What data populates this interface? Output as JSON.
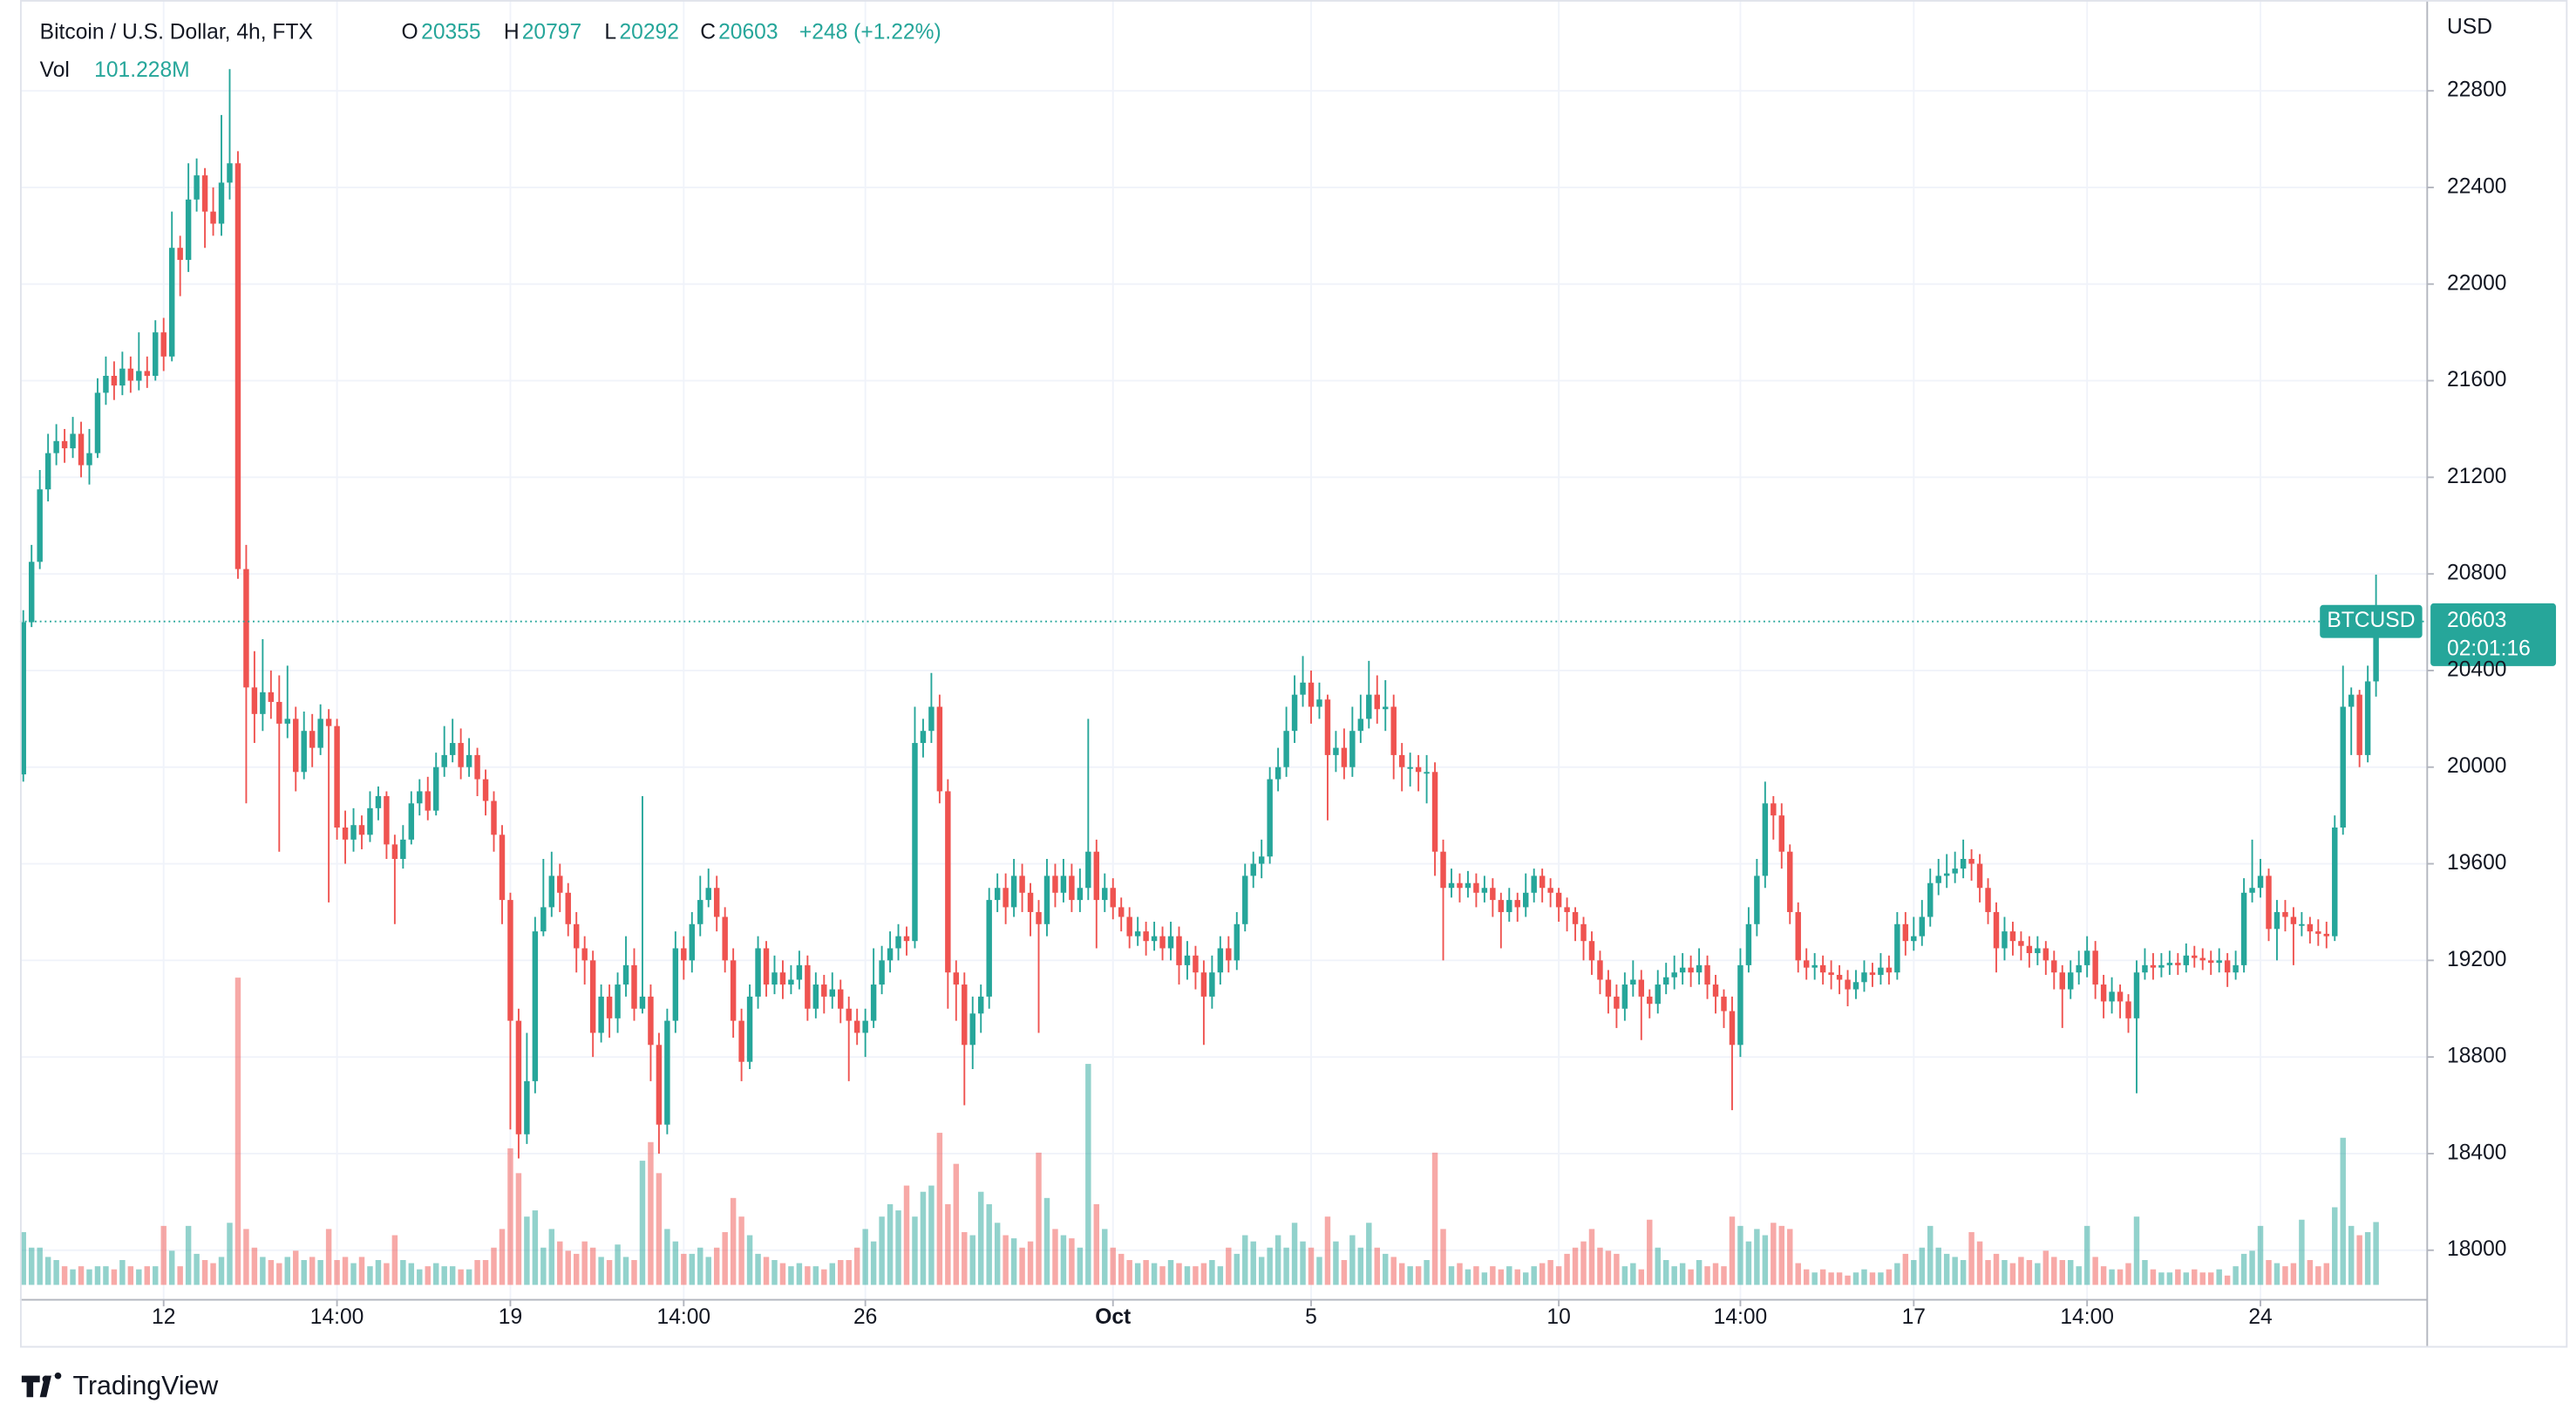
{
  "chart_data": {
    "type": "candlestick",
    "title": "Bitcoin / U.S. Dollar, 4h, FTX",
    "ohlc_labels": [
      "O",
      "H",
      "L",
      "C"
    ],
    "change_label": "+248 (+1.22%)",
    "volume_name": "Vol",
    "volume_last_label": "101.228M",
    "currency": "USD",
    "symbol": "BTCUSD",
    "countdown": "02:01:16",
    "up_color": "#26a69a",
    "down_color": "#ef5350",
    "grid": true,
    "xlim": [
      -0.4,
      291.2
    ],
    "ylim": [
      17795,
      23176
    ],
    "volume_ylim": [
      0,
      2070
    ],
    "xticks": [
      {
        "value": 17,
        "label": "12"
      },
      {
        "value": 38,
        "label": "14:00"
      },
      {
        "value": 59,
        "label": "19"
      },
      {
        "value": 80,
        "label": "14:00"
      },
      {
        "value": 102,
        "label": "26"
      },
      {
        "value": 132,
        "label": "Oct"
      },
      {
        "value": 156,
        "label": "5"
      },
      {
        "value": 186,
        "label": "10"
      },
      {
        "value": 208,
        "label": "14:00"
      },
      {
        "value": 229,
        "label": "17"
      },
      {
        "value": 250,
        "label": "14:00"
      },
      {
        "value": 271,
        "label": "24"
      }
    ],
    "yticks": [
      18000,
      18400,
      18800,
      19200,
      19600,
      20000,
      20400,
      20800,
      21200,
      21600,
      22000,
      22400,
      22800
    ],
    "open": [
      19970,
      20600,
      20850,
      21150,
      21300,
      21350,
      21320,
      21380,
      21250,
      21300,
      21550,
      21620,
      21580,
      21650,
      21600,
      21640,
      21620,
      21800,
      21700,
      22150,
      22100,
      22350,
      22450,
      22300,
      22250,
      22420,
      22500,
      20820,
      20330,
      20220,
      20310,
      20270,
      20180,
      20200,
      19980,
      20150,
      20080,
      20200,
      20170,
      19750,
      19700,
      19760,
      19720,
      19830,
      19880,
      19680,
      19620,
      19700,
      19850,
      19900,
      19820,
      20000,
      20050,
      20100,
      20000,
      20050,
      19950,
      19860,
      19720,
      19450,
      18950,
      18480,
      18700,
      19320,
      19420,
      19550,
      19480,
      19350,
      19250,
      19200,
      18900,
      19050,
      18960,
      19100,
      19180,
      19000,
      19050,
      18850,
      18520,
      18950,
      19250,
      19200,
      19350,
      19450,
      19500,
      19380,
      19200,
      18950,
      18780,
      19050,
      19250,
      19100,
      19150,
      19100,
      19120,
      19180,
      19000,
      19100,
      19050,
      19080,
      19000,
      18950,
      18900,
      18950,
      19100,
      19200,
      19250,
      19300,
      19280,
      20100,
      20150,
      20250,
      19900,
      19150,
      19100,
      18850,
      18980,
      19050,
      19450,
      19500,
      19420,
      19550,
      19480,
      19400,
      19350,
      19550,
      19480,
      19550,
      19450,
      19500,
      19650,
      19450,
      19500,
      19420,
      19380,
      19300,
      19320,
      19280,
      19300,
      19250,
      19300,
      19180,
      19220,
      19150,
      19050,
      19150,
      19250,
      19200,
      19350,
      19550,
      19600,
      19630,
      19950,
      20000,
      20150,
      20300,
      20350,
      20250,
      20280,
      20050,
      20080,
      20000,
      20150,
      20200,
      20300,
      20240,
      20250,
      20050,
      20000,
      20000,
      19980,
      19980,
      19650,
      19500,
      19520,
      19500,
      19520,
      19480,
      19500,
      19450,
      19400,
      19450,
      19420,
      19480,
      19550,
      19500,
      19480,
      19420,
      19400,
      19350,
      19280,
      19200,
      19120,
      19050,
      19000,
      19100,
      19120,
      19050,
      19020,
      19100,
      19130,
      19150,
      19170,
      19150,
      19180,
      19100,
      19050,
      18990,
      18850,
      19180,
      19350,
      19550,
      19850,
      19800,
      19650,
      19400,
      19200,
      19170,
      19180,
      19150,
      19140,
      19120,
      19080,
      19110,
      19150,
      19140,
      19170,
      19150,
      19350,
      19280,
      19300,
      19380,
      19520,
      19550,
      19560,
      19580,
      19620,
      19600,
      19500,
      19400,
      19250,
      19320,
      19280,
      19260,
      19230,
      19250,
      19200,
      19150,
      19080,
      19150,
      19180,
      19240,
      19100,
      19030,
      19070,
      19030,
      18960,
      19150,
      19180,
      19170,
      19180,
      19190,
      19180,
      19220,
      19210,
      19200,
      19190,
      19200,
      19150,
      19180,
      19480,
      19500,
      19550,
      19330,
      19400,
      19380,
      19350,
      19350,
      19320,
      19310,
      19300,
      19750,
      20250,
      20300,
      20050,
      20355
    ],
    "high": [
      20650,
      20920,
      21230,
      21380,
      21420,
      21400,
      21450,
      21430,
      21400,
      21610,
      21700,
      21680,
      21720,
      21700,
      21800,
      21700,
      21850,
      21860,
      22300,
      22200,
      22500,
      22520,
      22480,
      22400,
      22700,
      22890,
      22550,
      20920,
      20480,
      20530,
      20400,
      20380,
      20420,
      20250,
      20230,
      20220,
      20260,
      20240,
      20200,
      19820,
      19830,
      19800,
      19900,
      19920,
      19900,
      19720,
      19760,
      19900,
      19950,
      19960,
      20060,
      20170,
      20200,
      20160,
      20120,
      20080,
      19990,
      19900,
      19760,
      19480,
      19000,
      18900,
      19380,
      19620,
      19650,
      19600,
      19520,
      19400,
      19300,
      19240,
      19100,
      19100,
      19150,
      19300,
      19250,
      19880,
      19100,
      18900,
      19000,
      19320,
      19300,
      19400,
      19550,
      19580,
      19550,
      19420,
      19250,
      19000,
      19100,
      19300,
      19280,
      19220,
      19200,
      19180,
      19240,
      19220,
      19150,
      19140,
      19150,
      19120,
      19050,
      19000,
      19000,
      19250,
      19260,
      19320,
      19350,
      19340,
      20250,
      20200,
      20390,
      20300,
      19950,
      19200,
      19150,
      19050,
      19100,
      19500,
      19560,
      19560,
      19620,
      19600,
      19520,
      19450,
      19620,
      19600,
      19620,
      19600,
      19580,
      20200,
      19700,
      19560,
      19540,
      19460,
      19420,
      19380,
      19360,
      19360,
      19340,
      19360,
      19340,
      19280,
      19260,
      19200,
      19220,
      19300,
      19300,
      19400,
      19600,
      19650,
      19700,
      20000,
      20080,
      20250,
      20380,
      20460,
      20400,
      20350,
      20300,
      20150,
      20160,
      20250,
      20300,
      20440,
      20380,
      20360,
      20300,
      20100,
      20060,
      20050,
      20050,
      20020,
      19700,
      19580,
      19560,
      19570,
      19560,
      19550,
      19540,
      19480,
      19500,
      19480,
      19560,
      19580,
      19580,
      19540,
      19500,
      19460,
      19420,
      19380,
      19320,
      19240,
      19160,
      19100,
      19150,
      19200,
      19160,
      19080,
      19160,
      19190,
      19220,
      19230,
      19220,
      19250,
      19220,
      19140,
      19080,
      19050,
      19250,
      19420,
      19620,
      19940,
      19880,
      19850,
      19680,
      19440,
      19250,
      19230,
      19220,
      19200,
      19180,
      19160,
      19160,
      19200,
      19190,
      19230,
      19220,
      19400,
      19400,
      19380,
      19450,
      19580,
      19620,
      19640,
      19650,
      19700,
      19660,
      19640,
      19540,
      19440,
      19380,
      19360,
      19320,
      19300,
      19300,
      19280,
      19240,
      19180,
      19200,
      19240,
      19300,
      19280,
      19140,
      19130,
      19100,
      19060,
      19200,
      19250,
      19230,
      19230,
      19240,
      19230,
      19270,
      19260,
      19250,
      19240,
      19250,
      19230,
      19240,
      19540,
      19700,
      19620,
      19580,
      19450,
      19450,
      19420,
      19400,
      19380,
      19370,
      19360,
      19800,
      20420,
      20330,
      20320,
      20420,
      20797
    ],
    "low": [
      19940,
      20580,
      20820,
      21100,
      21250,
      21260,
      21280,
      21200,
      21170,
      21280,
      21500,
      21520,
      21540,
      21550,
      21560,
      21570,
      21600,
      21640,
      21680,
      21950,
      22050,
      22300,
      22150,
      22200,
      22200,
      22350,
      20780,
      19850,
      20100,
      20150,
      20200,
      19650,
      20120,
      19900,
      19950,
      20000,
      20050,
      19440,
      19700,
      19600,
      19650,
      19660,
      19690,
      19780,
      19620,
      19350,
      19580,
      19680,
      19800,
      19780,
      19800,
      19960,
      20020,
      19950,
      19960,
      19880,
      19800,
      19650,
      19350,
      18500,
      18380,
      18440,
      18650,
      19300,
      19380,
      19400,
      19300,
      19150,
      19100,
      18800,
      18860,
      18880,
      18900,
      19050,
      18950,
      18980,
      18700,
      18400,
      18480,
      18900,
      19120,
      19150,
      19300,
      19420,
      19320,
      19150,
      18880,
      18700,
      18750,
      19000,
      19050,
      19060,
      19040,
      19060,
      19080,
      18950,
      18960,
      18980,
      19000,
      18940,
      18700,
      18850,
      18800,
      18920,
      19060,
      19150,
      19200,
      19220,
      19250,
      20040,
      20100,
      19850,
      19000,
      18950,
      18600,
      18750,
      18900,
      19000,
      19400,
      19350,
      19380,
      19400,
      19300,
      18900,
      19300,
      19420,
      19440,
      19400,
      19400,
      19450,
      19250,
      19400,
      19370,
      19320,
      19250,
      19260,
      19220,
      19240,
      19200,
      19200,
      19100,
      19120,
      19080,
      18850,
      19000,
      19100,
      19150,
      19160,
      19320,
      19500,
      19540,
      19600,
      19900,
      19960,
      20100,
      20250,
      20180,
      20200,
      19780,
      19980,
      19950,
      19960,
      20100,
      20160,
      20180,
      20150,
      19950,
      19900,
      19920,
      19900,
      19850,
      19550,
      19200,
      19460,
      19440,
      19460,
      19420,
      19440,
      19380,
      19250,
      19360,
      19360,
      19380,
      19440,
      19440,
      19420,
      19360,
      19320,
      19280,
      19200,
      19140,
      19060,
      18980,
      18920,
      18950,
      19050,
      18870,
      18960,
      18980,
      19060,
      19080,
      19100,
      19090,
      19100,
      19040,
      18980,
      18920,
      18580,
      18800,
      19150,
      19300,
      19500,
      19700,
      19580,
      19350,
      19150,
      19120,
      19120,
      19100,
      19080,
      19060,
      19010,
      19040,
      19070,
      19090,
      19100,
      19100,
      19120,
      19220,
      19240,
      19260,
      19340,
      19470,
      19500,
      19520,
      19540,
      19530,
      19440,
      19350,
      19150,
      19200,
      19220,
      19200,
      19170,
      19180,
      19140,
      19080,
      18920,
      19040,
      19100,
      19130,
      19040,
      18960,
      18980,
      18960,
      18900,
      18650,
      19120,
      19120,
      19130,
      19140,
      19140,
      19150,
      19170,
      19160,
      19140,
      19150,
      19090,
      19120,
      19150,
      19440,
      19460,
      19280,
      19200,
      19320,
      19180,
      19300,
      19270,
      19260,
      19250,
      19280,
      19720,
      20050,
      20000,
      20020,
      20292
    ],
    "close": [
      20600,
      20850,
      21150,
      21300,
      21350,
      21320,
      21380,
      21250,
      21300,
      21550,
      21620,
      21580,
      21650,
      21600,
      21640,
      21620,
      21800,
      21700,
      22150,
      22100,
      22350,
      22450,
      22300,
      22250,
      22420,
      22500,
      20820,
      20330,
      20220,
      20310,
      20270,
      20180,
      20200,
      19980,
      20150,
      20080,
      20200,
      20170,
      19750,
      19700,
      19760,
      19720,
      19830,
      19880,
      19680,
      19620,
      19700,
      19850,
      19900,
      19820,
      20000,
      20050,
      20100,
      20000,
      20050,
      19950,
      19860,
      19720,
      19450,
      18950,
      18480,
      18700,
      19320,
      19420,
      19550,
      19480,
      19350,
      19250,
      19200,
      18900,
      19050,
      18960,
      19100,
      19180,
      19000,
      19050,
      18850,
      18520,
      18950,
      19250,
      19200,
      19350,
      19450,
      19500,
      19380,
      19200,
      18950,
      18780,
      19050,
      19250,
      19100,
      19150,
      19100,
      19120,
      19180,
      19000,
      19100,
      19050,
      19080,
      19000,
      18950,
      18900,
      18950,
      19100,
      19200,
      19250,
      19300,
      19280,
      20100,
      20150,
      20250,
      19900,
      19150,
      19100,
      18850,
      18980,
      19050,
      19450,
      19500,
      19420,
      19550,
      19480,
      19400,
      19350,
      19550,
      19480,
      19550,
      19450,
      19500,
      19650,
      19450,
      19500,
      19420,
      19380,
      19300,
      19320,
      19280,
      19300,
      19250,
      19300,
      19180,
      19220,
      19150,
      19050,
      19150,
      19250,
      19200,
      19350,
      19550,
      19600,
      19630,
      19950,
      20000,
      20150,
      20300,
      20350,
      20250,
      20280,
      20050,
      20080,
      20000,
      20150,
      20200,
      20300,
      20240,
      20250,
      20050,
      20000,
      20000,
      19980,
      19980,
      19650,
      19500,
      19520,
      19500,
      19520,
      19480,
      19500,
      19450,
      19400,
      19450,
      19420,
      19480,
      19550,
      19500,
      19480,
      19420,
      19400,
      19350,
      19280,
      19200,
      19120,
      19050,
      19000,
      19100,
      19120,
      19050,
      19020,
      19100,
      19130,
      19150,
      19170,
      19150,
      19180,
      19100,
      19050,
      18990,
      18850,
      19180,
      19350,
      19550,
      19850,
      19800,
      19650,
      19400,
      19200,
      19170,
      19180,
      19150,
      19140,
      19120,
      19080,
      19110,
      19150,
      19140,
      19170,
      19150,
      19350,
      19280,
      19300,
      19380,
      19520,
      19550,
      19560,
      19580,
      19620,
      19600,
      19500,
      19400,
      19250,
      19320,
      19280,
      19260,
      19230,
      19250,
      19200,
      19150,
      19080,
      19150,
      19180,
      19240,
      19100,
      19030,
      19070,
      19030,
      18960,
      19150,
      19180,
      19170,
      19180,
      19190,
      19180,
      19220,
      19210,
      19200,
      19190,
      19200,
      19150,
      19180,
      19480,
      19500,
      19550,
      19330,
      19400,
      19380,
      19350,
      19350,
      19320,
      19310,
      19300,
      19750,
      20250,
      20300,
      20050,
      20355,
      20603
    ],
    "volume": [
      85,
      60,
      60,
      45,
      40,
      30,
      25,
      30,
      25,
      30,
      30,
      25,
      40,
      30,
      25,
      30,
      30,
      95,
      55,
      30,
      95,
      50,
      40,
      35,
      45,
      100,
      495,
      90,
      60,
      45,
      40,
      35,
      45,
      55,
      40,
      45,
      40,
      90,
      40,
      45,
      35,
      45,
      30,
      40,
      35,
      80,
      40,
      35,
      25,
      30,
      35,
      30,
      30,
      25,
      25,
      40,
      40,
      60,
      90,
      220,
      180,
      110,
      120,
      60,
      90,
      70,
      55,
      50,
      70,
      60,
      45,
      40,
      65,
      45,
      40,
      200,
      230,
      180,
      90,
      70,
      50,
      50,
      60,
      45,
      60,
      85,
      140,
      110,
      80,
      50,
      45,
      40,
      35,
      30,
      35,
      30,
      30,
      25,
      35,
      40,
      40,
      60,
      90,
      70,
      110,
      130,
      120,
      160,
      110,
      150,
      160,
      245,
      130,
      195,
      85,
      80,
      150,
      130,
      100,
      80,
      75,
      60,
      70,
      213,
      140,
      90,
      80,
      75,
      60,
      356,
      130,
      90,
      60,
      50,
      40,
      35,
      40,
      35,
      30,
      40,
      35,
      30,
      30,
      35,
      40,
      30,
      60,
      50,
      80,
      70,
      45,
      60,
      80,
      60,
      100,
      70,
      60,
      45,
      110,
      70,
      40,
      80,
      60,
      100,
      60,
      50,
      45,
      35,
      30,
      30,
      40,
      213,
      90,
      30,
      35,
      25,
      30,
      20,
      30,
      25,
      30,
      25,
      20,
      30,
      35,
      40,
      30,
      50,
      60,
      70,
      90,
      60,
      55,
      50,
      30,
      35,
      25,
      105,
      60,
      40,
      30,
      35,
      25,
      40,
      30,
      35,
      30,
      110,
      95,
      70,
      90,
      80,
      100,
      95,
      90,
      35,
      25,
      20,
      25,
      20,
      20,
      15,
      20,
      25,
      20,
      20,
      25,
      35,
      50,
      40,
      60,
      95,
      60,
      50,
      45,
      40,
      85,
      70,
      40,
      50,
      40,
      35,
      45,
      40,
      35,
      55,
      45,
      40,
      40,
      30,
      95,
      45,
      30,
      25,
      25,
      35,
      110,
      40,
      25,
      20,
      20,
      25,
      20,
      25,
      20,
      20,
      25,
      15,
      30,
      50,
      55,
      95,
      40,
      35,
      30,
      35,
      105,
      40,
      30,
      35,
      125,
      237,
      95,
      80,
      85,
      101.228
    ]
  },
  "footer": {
    "brand": "TradingView"
  }
}
